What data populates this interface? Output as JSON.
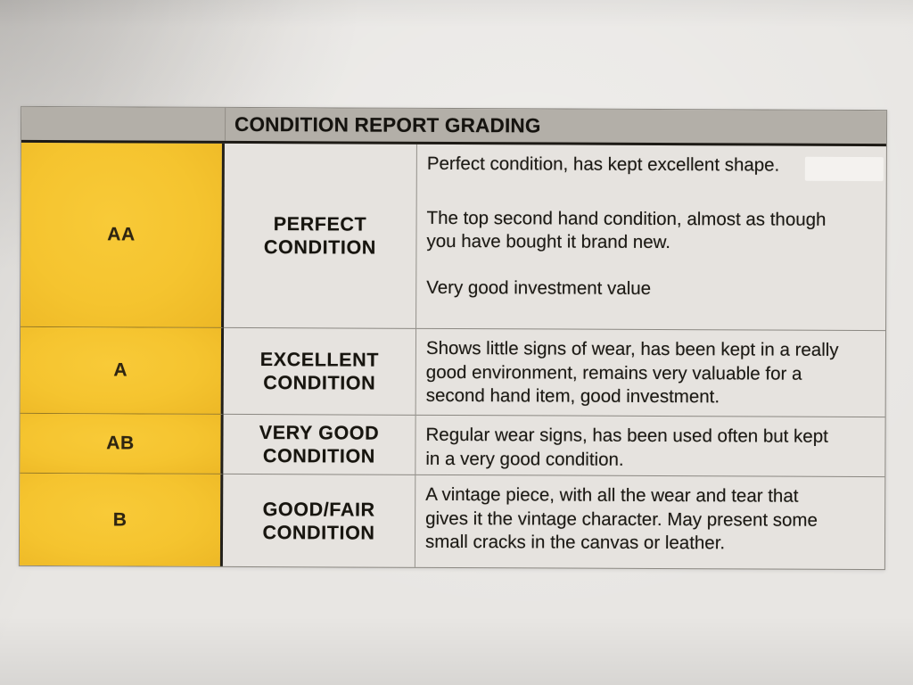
{
  "photo": {
    "colors": {
      "paper_bg": "#e8e6e3"
    }
  },
  "table": {
    "title": "CONDITION REPORT GRADING",
    "colors": {
      "header_bg": "#b3afa8",
      "grade_bg": "#f5c42f",
      "cell_bg": "#e6e3df"
    },
    "rows": [
      {
        "grade": "AA",
        "condition_lines": [
          "PERFECT",
          "CONDITION"
        ],
        "paragraphs": [
          [
            "Perfect condition, has kept excellent shape."
          ],
          [
            "The top second hand condition, almost as though",
            "you have bought it brand new."
          ],
          [
            "Very good investment value"
          ]
        ]
      },
      {
        "grade": "A",
        "condition_lines": [
          "EXCELLENT",
          "CONDITION"
        ],
        "paragraphs": [
          [
            "Shows little signs of wear, has been kept in a really",
            "good environment, remains very valuable for a",
            "second hand item, good investment."
          ]
        ]
      },
      {
        "grade": "AB",
        "condition_lines": [
          "VERY GOOD",
          "CONDITION"
        ],
        "paragraphs": [
          [
            "Regular wear signs, has been used often but kept",
            "in a very good condition."
          ]
        ]
      },
      {
        "grade": "B",
        "condition_lines": [
          "GOOD/FAIR",
          "CONDITION"
        ],
        "paragraphs": [
          [
            "A vintage piece, with all the wear and tear that",
            "gives it the vintage character. May present some",
            "small cracks in the canvas or leather."
          ]
        ]
      }
    ]
  }
}
